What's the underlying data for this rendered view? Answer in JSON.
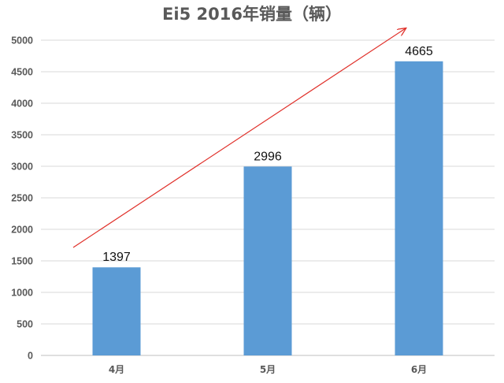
{
  "chart_data": {
    "type": "bar",
    "title": "Ei5 2016年销量（辆）",
    "categories": [
      "4月",
      "5月",
      "6月"
    ],
    "values": [
      1397,
      2996,
      4665
    ],
    "ylim": [
      0,
      5000
    ],
    "yticks": [
      0,
      500,
      1000,
      1500,
      2000,
      2500,
      3000,
      3500,
      4000,
      4500,
      5000
    ],
    "grid": true,
    "legend": "none",
    "annotations": [
      "rising trend arrow"
    ],
    "colors": {
      "bar": "#5b9bd5",
      "arrow": "#e0302a",
      "grid": "#d9d9d9",
      "text": "#595959"
    }
  }
}
